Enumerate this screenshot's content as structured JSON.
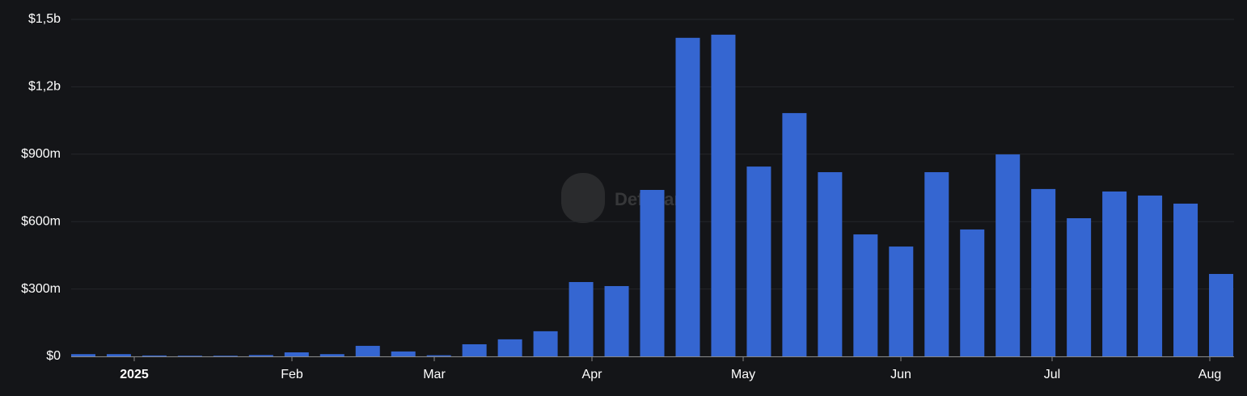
{
  "chart_data": {
    "type": "bar",
    "watermark": "DefiLlama",
    "categories": [
      null,
      null,
      null,
      null,
      null,
      null,
      null,
      null,
      null,
      null,
      null,
      null,
      null,
      null,
      null,
      null,
      null,
      null,
      null,
      null,
      null,
      null,
      null,
      null,
      null,
      null,
      null,
      null,
      null,
      null,
      null,
      null,
      null
    ],
    "values": [
      10,
      10,
      4,
      3,
      3,
      6,
      18,
      10,
      47,
      22,
      5,
      54,
      76,
      112,
      331,
      313,
      741,
      1418,
      1432,
      845,
      1083,
      820,
      543,
      489,
      820,
      565,
      899,
      745,
      615,
      734,
      716,
      680,
      367
    ],
    "color": "#3566d1",
    "ylim": [
      0,
      1500
    ],
    "yticks": [
      {
        "value": 0,
        "label": "$0"
      },
      {
        "value": 300,
        "label": "$300m"
      },
      {
        "value": 600,
        "label": "$600m"
      },
      {
        "value": 900,
        "label": "$900m"
      },
      {
        "value": 1200,
        "label": "$1,2b"
      },
      {
        "value": 1500,
        "label": "$1,5b"
      }
    ],
    "xtick_labels": [
      "2025",
      "Feb",
      "Mar",
      "Apr",
      "May",
      "Jun",
      "Jul",
      "Aug"
    ],
    "grid": true
  }
}
